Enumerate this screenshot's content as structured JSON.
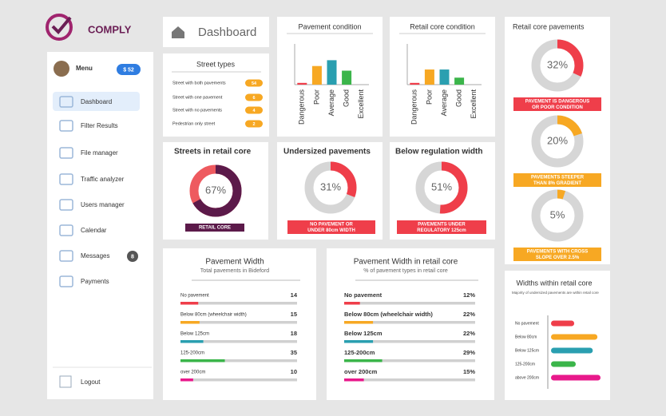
{
  "brand": "COMPLY",
  "header": {
    "title": "Dashboard"
  },
  "sidebar": {
    "menu": "Menu",
    "balance": "$ 52",
    "items": [
      {
        "label": "Dashboard"
      },
      {
        "label": "Filter Results"
      },
      {
        "label": "File manager"
      },
      {
        "label": "Traffic analyzer"
      },
      {
        "label": "Users manager"
      },
      {
        "label": "Calendar"
      },
      {
        "label": "Messages",
        "badge": 8
      },
      {
        "label": "Payments"
      }
    ],
    "logout": "Logout"
  },
  "street_types": {
    "title": "Street types",
    "categories": [
      "Street with both pavements",
      "Street with one pavement",
      "Street with no pavements",
      "Pedestrian only street"
    ],
    "values": [
      54,
      6,
      4,
      2
    ],
    "color": "#f7a823"
  },
  "chart_data": [
    {
      "type": "bar",
      "title": "Pavement condition",
      "categories": [
        "Dangerous",
        "Poor",
        "Average",
        "Good",
        "Excellent"
      ],
      "values": [
        1.5,
        16,
        21,
        12,
        0
      ],
      "colors": [
        "#ef3e4a",
        "#f7a823",
        "#2a9fb0",
        "#3bb54a",
        "#3bb54a"
      ],
      "ylim": [
        0,
        35
      ]
    },
    {
      "type": "bar",
      "title": "Retail core condition",
      "categories": [
        "Dangerous",
        "Poor",
        "Average",
        "Good",
        "Excellent"
      ],
      "values": [
        1.5,
        13,
        13,
        6,
        0
      ],
      "colors": [
        "#ef3e4a",
        "#f7a823",
        "#2a9fb0",
        "#3bb54a",
        "#3bb54a"
      ],
      "ylim": [
        0,
        35
      ]
    },
    {
      "type": "donut",
      "title": "Streets in retail core",
      "values": [
        67
      ],
      "value_labels": [
        "67%"
      ],
      "color": "#5c1a4a",
      "track_color": "#ee5a5f",
      "captions": [
        [
          "RETAIL CORE"
        ]
      ],
      "caption_color": "#5c1a4a"
    },
    {
      "type": "donut",
      "title": "Undersized pavements",
      "values": [
        31
      ],
      "value_labels": [
        "31%"
      ],
      "color": "#ef3e4a",
      "track_color": "#d6d6d6",
      "captions": [
        [
          "NO PAVEMENT OR",
          "UNDER 80cm WIDTH"
        ]
      ],
      "caption_color": "#ef3e4a"
    },
    {
      "type": "donut",
      "title": "Below regulation width",
      "values": [
        51
      ],
      "value_labels": [
        "51%"
      ],
      "color": "#ef3e4a",
      "track_color": "#d6d6d6",
      "captions": [
        [
          "PAVEMENTS UNDER",
          "REGULATORY 125cm"
        ]
      ],
      "caption_color": "#ef3e4a"
    },
    {
      "type": "donuts",
      "title": "Retail core pavements",
      "values": [
        32,
        20,
        5
      ],
      "value_labels": [
        "32%",
        "20%",
        "5%"
      ],
      "colors": [
        "#ef3e4a",
        "#f7a823",
        "#f7a823"
      ],
      "track_color": "#d6d6d6",
      "captions": [
        [
          "PAVEMENT IS DANGEROUS",
          "OR POOR CONDITION"
        ],
        [
          "PAVEMENTS STEEPER",
          "THAN 8% GRADIENT"
        ],
        [
          "PAVEMENTS WITH CROSS",
          "SLOPE OVER 2.5%"
        ]
      ]
    },
    {
      "type": "progress",
      "title": "Pavement Width",
      "subtitle": "Total pavements in Bideford",
      "categories": [
        "No pavement",
        "Below 80cm (wheelchair width)",
        "Below 125cm",
        "125-200cm",
        "over 200cm"
      ],
      "values": [
        14,
        15,
        18,
        35,
        10
      ],
      "colors": [
        "#ef3e4a",
        "#f7a823",
        "#2a9fb0",
        "#3bb54a",
        "#e8198b"
      ]
    },
    {
      "type": "progress",
      "title": "Pavement Width in retail core",
      "subtitle": "% of pavement types in retail core",
      "categories": [
        "No pavement",
        "Below 80cm (wheelchair width)",
        "Below 125cm",
        "125-200cm",
        "over 200cm"
      ],
      "values": [
        12,
        22,
        22,
        29,
        15
      ],
      "value_labels": [
        "12%",
        "22%",
        "22%",
        "29%",
        "15%"
      ],
      "colors": [
        "#ef3e4a",
        "#f7a823",
        "#2a9fb0",
        "#3bb54a",
        "#e8198b"
      ]
    },
    {
      "type": "pills",
      "title": "Widths within retail core",
      "subtitle": "Majority of undersized pavements are within retail core",
      "categories": [
        "No pavement",
        "Below 80cm",
        "Below 125cm",
        "125-200cm",
        "above 200cm"
      ],
      "values": [
        15,
        30,
        27,
        16,
        32
      ],
      "colors": [
        "#ef3e4a",
        "#f7a823",
        "#2a9fb0",
        "#3bb54a",
        "#e8198b"
      ]
    }
  ]
}
